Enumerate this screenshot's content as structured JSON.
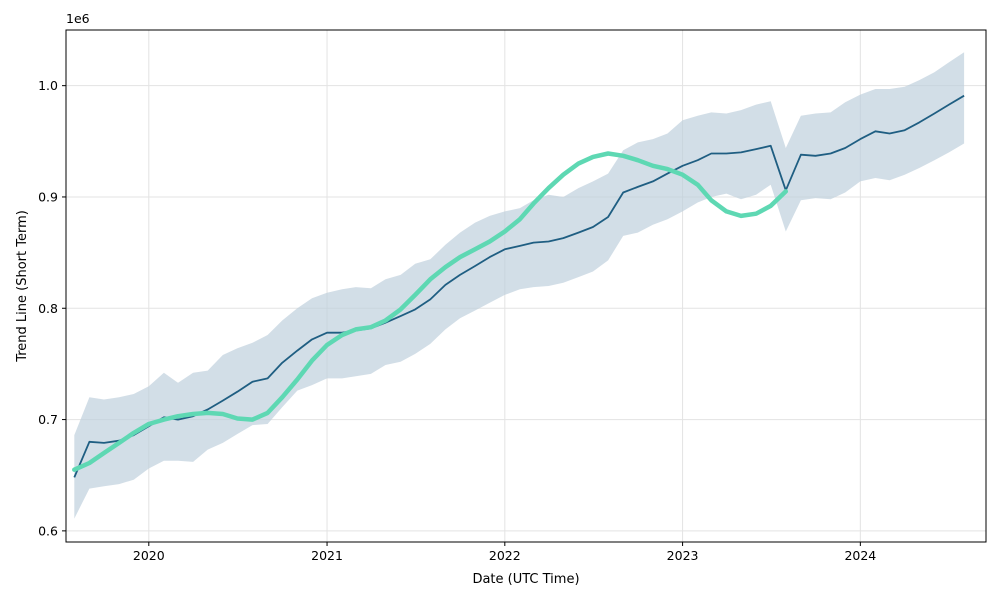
{
  "chart_data": {
    "type": "line",
    "title": "",
    "xlabel": "Date (UTC Time)",
    "ylabel": "Trend Line (Short Term)",
    "y_offset_label": "1e6",
    "xlim": [
      "2019-07-15",
      "2024-09-15"
    ],
    "ylim": [
      590000,
      1050000
    ],
    "grid": true,
    "x_ticks": [
      {
        "date": "2020-01-01",
        "label": "2020"
      },
      {
        "date": "2021-01-01",
        "label": "2021"
      },
      {
        "date": "2022-01-01",
        "label": "2022"
      },
      {
        "date": "2023-01-01",
        "label": "2023"
      },
      {
        "date": "2024-01-01",
        "label": "2024"
      }
    ],
    "y_ticks": [
      {
        "value": 600000,
        "label": "0.6"
      },
      {
        "value": 700000,
        "label": "0.7"
      },
      {
        "value": 800000,
        "label": "0.8"
      },
      {
        "value": 900000,
        "label": "0.9"
      },
      {
        "value": 1000000,
        "label": "1.0"
      }
    ],
    "colors": {
      "band": "#bccfdb",
      "trend": "#1f5e82",
      "smooth": "#5ed8b3",
      "grid": "#e3e3e3"
    },
    "series": [
      {
        "kind": "band",
        "x": [
          "2019-08-01",
          "2019-09-01",
          "2019-10-01",
          "2019-11-01",
          "2019-12-01",
          "2020-01-01",
          "2020-02-01",
          "2020-03-01",
          "2020-04-01",
          "2020-05-01",
          "2020-06-01",
          "2020-07-01",
          "2020-08-01",
          "2020-09-01",
          "2020-10-01",
          "2020-11-01",
          "2020-12-01",
          "2021-01-01",
          "2021-02-01",
          "2021-03-01",
          "2021-04-01",
          "2021-05-01",
          "2021-06-01",
          "2021-07-01",
          "2021-08-01",
          "2021-09-01",
          "2021-10-01",
          "2021-11-01",
          "2021-12-01",
          "2022-01-01",
          "2022-02-01",
          "2022-03-01",
          "2022-04-01",
          "2022-05-01",
          "2022-06-01",
          "2022-07-01",
          "2022-08-01",
          "2022-09-01",
          "2022-10-01",
          "2022-11-01",
          "2022-12-01",
          "2023-01-01",
          "2023-02-01",
          "2023-03-01",
          "2023-04-01",
          "2023-05-01",
          "2023-06-01",
          "2023-07-01",
          "2023-08-01",
          "2023-09-01",
          "2023-10-01",
          "2023-11-01",
          "2023-12-01",
          "2024-01-01",
          "2024-02-01",
          "2024-03-01",
          "2024-04-01",
          "2024-05-01",
          "2024-06-01",
          "2024-07-01",
          "2024-08-01"
        ],
        "lower": [
          611000,
          638000,
          640000,
          642000,
          646000,
          656000,
          663000,
          663000,
          662000,
          673000,
          679000,
          687000,
          695000,
          696000,
          711000,
          726000,
          731000,
          737000,
          737000,
          739000,
          741000,
          749000,
          752000,
          759000,
          768000,
          781000,
          791000,
          798000,
          805000,
          812000,
          817000,
          819000,
          820000,
          823000,
          828000,
          833000,
          843000,
          865000,
          868000,
          875000,
          880000,
          887000,
          895000,
          900000,
          903000,
          898000,
          902000,
          911000,
          869000,
          897000,
          899000,
          898000,
          904000,
          914000,
          917000,
          915000,
          920000,
          926000,
          933000,
          940000,
          948000
        ],
        "upper": [
          686000,
          720000,
          718000,
          720000,
          723000,
          730000,
          742000,
          733000,
          742000,
          744000,
          758000,
          764000,
          769000,
          776000,
          789000,
          800000,
          809000,
          814000,
          817000,
          819000,
          818000,
          826000,
          830000,
          840000,
          844000,
          857000,
          868000,
          877000,
          883000,
          887000,
          890000,
          897000,
          902000,
          900000,
          908000,
          914000,
          921000,
          942000,
          949000,
          952000,
          957000,
          969000,
          973000,
          976000,
          975000,
          978000,
          983000,
          986000,
          944000,
          973000,
          975000,
          976000,
          985000,
          992000,
          997000,
          997000,
          999000,
          1005000,
          1012000,
          1021000,
          1030000
        ]
      },
      {
        "kind": "trend",
        "x": [
          "2019-08-01",
          "2019-09-01",
          "2019-10-01",
          "2019-11-01",
          "2019-12-01",
          "2020-01-01",
          "2020-02-01",
          "2020-03-01",
          "2020-04-01",
          "2020-05-01",
          "2020-06-01",
          "2020-07-01",
          "2020-08-01",
          "2020-09-01",
          "2020-10-01",
          "2020-11-01",
          "2020-12-01",
          "2021-01-01",
          "2021-02-01",
          "2021-03-01",
          "2021-04-01",
          "2021-05-01",
          "2021-06-01",
          "2021-07-01",
          "2021-08-01",
          "2021-09-01",
          "2021-10-01",
          "2021-11-01",
          "2021-12-01",
          "2022-01-01",
          "2022-02-01",
          "2022-03-01",
          "2022-04-01",
          "2022-05-01",
          "2022-06-01",
          "2022-07-01",
          "2022-08-01",
          "2022-09-01",
          "2022-10-01",
          "2022-11-01",
          "2022-12-01",
          "2023-01-01",
          "2023-02-01",
          "2023-03-01",
          "2023-04-01",
          "2023-05-01",
          "2023-06-01",
          "2023-07-01",
          "2023-08-01",
          "2023-09-01",
          "2023-10-01",
          "2023-11-01",
          "2023-12-01",
          "2024-01-01",
          "2024-02-01",
          "2024-03-01",
          "2024-04-01",
          "2024-05-01",
          "2024-06-01",
          "2024-07-01",
          "2024-08-01"
        ],
        "values": [
          648000,
          680000,
          679000,
          681000,
          686000,
          694000,
          702000,
          700000,
          703000,
          709000,
          717000,
          725000,
          734000,
          737000,
          751000,
          762000,
          772000,
          778000,
          778000,
          780000,
          782000,
          787000,
          793000,
          799000,
          808000,
          821000,
          830000,
          838000,
          846000,
          853000,
          856000,
          859000,
          860000,
          863000,
          868000,
          873000,
          882000,
          904000,
          909000,
          914000,
          921000,
          928000,
          933000,
          939000,
          939000,
          940000,
          943000,
          946000,
          906000,
          938000,
          937000,
          939000,
          944000,
          952000,
          959000,
          957000,
          960000,
          967000,
          975000,
          983000,
          991000
        ]
      },
      {
        "kind": "smooth",
        "x": [
          "2019-08-01",
          "2019-09-01",
          "2019-10-01",
          "2019-11-01",
          "2019-12-01",
          "2020-01-01",
          "2020-02-01",
          "2020-03-01",
          "2020-04-01",
          "2020-05-01",
          "2020-06-01",
          "2020-07-01",
          "2020-08-01",
          "2020-09-01",
          "2020-10-01",
          "2020-11-01",
          "2020-12-01",
          "2021-01-01",
          "2021-02-01",
          "2021-03-01",
          "2021-04-01",
          "2021-05-01",
          "2021-06-01",
          "2021-07-01",
          "2021-08-01",
          "2021-09-01",
          "2021-10-01",
          "2021-11-01",
          "2021-12-01",
          "2022-01-01",
          "2022-02-01",
          "2022-03-01",
          "2022-04-01",
          "2022-05-01",
          "2022-06-01",
          "2022-07-01",
          "2022-08-01",
          "2022-09-01",
          "2022-10-01",
          "2022-11-01",
          "2022-12-01",
          "2023-01-01",
          "2023-02-01",
          "2023-03-01",
          "2023-04-01",
          "2023-05-01",
          "2023-06-01",
          "2023-07-01",
          "2023-08-01"
        ],
        "values": [
          655000,
          661000,
          670000,
          679000,
          688000,
          696000,
          700000,
          703000,
          705000,
          706000,
          705000,
          701000,
          700000,
          706000,
          720000,
          736000,
          753000,
          767000,
          776000,
          781000,
          783000,
          789000,
          799000,
          812000,
          826000,
          837000,
          846000,
          853000,
          860000,
          869000,
          880000,
          894000,
          908000,
          920000,
          930000,
          936000,
          939000,
          937000,
          933000,
          928000,
          925000,
          920000,
          911000,
          897000,
          887000,
          883000,
          885000,
          892000,
          905000
        ]
      }
    ]
  }
}
